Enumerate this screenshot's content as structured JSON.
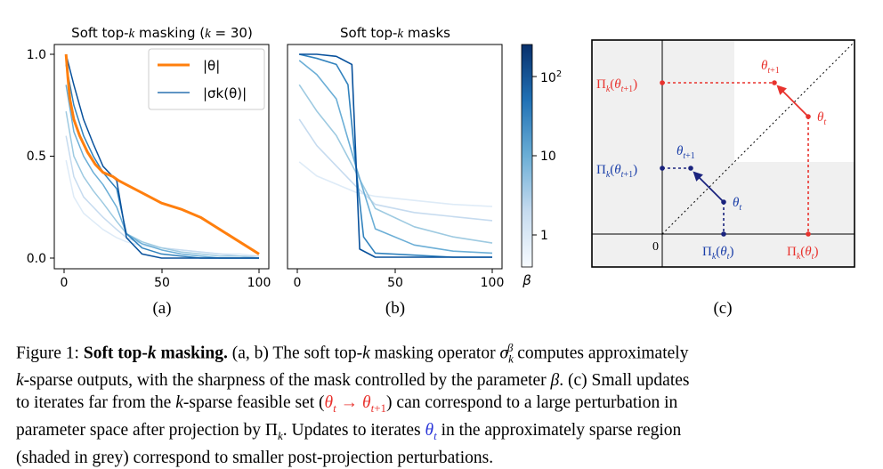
{
  "panels": {
    "a": {
      "title": "Soft top-k masking (k = 30)",
      "label": "(a)",
      "legend": [
        "|θ|",
        "|σk(θ)|"
      ],
      "xticks": [
        "0",
        "50",
        "100"
      ],
      "yticks": [
        "1.0",
        "0.5",
        "0.0"
      ]
    },
    "b": {
      "title": "Soft top-k masks",
      "label": "(b)",
      "xticks": [
        "0",
        "50",
        "100"
      ],
      "colorbar": {
        "label": "β",
        "ticks": [
          "10²",
          "10",
          "1"
        ]
      }
    },
    "c": {
      "label": "(c)",
      "zero": "0",
      "red": {
        "theta_t": "θt",
        "theta_t1": "θt+1",
        "proj_t": "Πk(θt)",
        "proj_t1": "Πk(θt+1)"
      },
      "blue": {
        "theta_t": "θt",
        "theta_t1": "θt+1",
        "proj_t": "Πk(θt)",
        "proj_t1": "Πk(θt+1)"
      }
    }
  },
  "chart_data": [
    {
      "type": "line",
      "title": "Soft top-k masking (k = 30)",
      "xlim": [
        0,
        100
      ],
      "ylim": [
        0,
        1
      ],
      "series": [
        {
          "name": "|θ|",
          "color": "#ff7f0e",
          "x": [
            1,
            2,
            3,
            5,
            8,
            12,
            16,
            20,
            25,
            28,
            32,
            40,
            50,
            60,
            70,
            80,
            90,
            95,
            100
          ],
          "y": [
            1.0,
            0.88,
            0.78,
            0.68,
            0.6,
            0.52,
            0.46,
            0.42,
            0.4,
            0.38,
            0.36,
            0.32,
            0.27,
            0.24,
            0.2,
            0.14,
            0.08,
            0.05,
            0.02
          ]
        }
      ],
      "mask_series": [
        {
          "beta": 1,
          "color": "#deebf7",
          "y": [
            0.48,
            0.3,
            0.22,
            0.18,
            0.14,
            0.1,
            0.08,
            0.06,
            0.05,
            0.04,
            0.03,
            0.02,
            0.02,
            0.01
          ]
        },
        {
          "beta": 3,
          "color": "#c6dbef",
          "y": [
            0.6,
            0.4,
            0.3,
            0.25,
            0.2,
            0.14,
            0.1,
            0.07,
            0.05,
            0.04,
            0.03,
            0.02,
            0.01,
            0.01
          ]
        },
        {
          "beta": 10,
          "color": "#9ecae1",
          "y": [
            0.72,
            0.5,
            0.4,
            0.33,
            0.27,
            0.18,
            0.12,
            0.08,
            0.05,
            0.03,
            0.02,
            0.01,
            0.01,
            0.0
          ]
        },
        {
          "beta": 30,
          "color": "#6baed6",
          "y": [
            0.85,
            0.62,
            0.5,
            0.42,
            0.36,
            0.25,
            0.12,
            0.07,
            0.04,
            0.02,
            0.01,
            0.0,
            0.0,
            0.0
          ]
        },
        {
          "beta": 100,
          "color": "#3182bd",
          "y": [
            0.95,
            0.75,
            0.6,
            0.5,
            0.42,
            0.34,
            0.12,
            0.05,
            0.02,
            0.01,
            0.0,
            0.0,
            0.0,
            0.0
          ]
        },
        {
          "beta": 300,
          "color": "#08519c",
          "y": [
            1.0,
            0.85,
            0.68,
            0.56,
            0.45,
            0.38,
            0.1,
            0.02,
            0.0,
            0.0,
            0.0,
            0.0,
            0.0,
            0.0
          ]
        }
      ],
      "mask_x": [
        1,
        5,
        10,
        15,
        20,
        27,
        32,
        40,
        50,
        60,
        70,
        80,
        90,
        100
      ]
    },
    {
      "type": "line",
      "title": "Soft top-k masks",
      "xlim": [
        0,
        100
      ],
      "ylim": [
        0,
        1
      ],
      "series": [
        {
          "beta": 1,
          "color": "#deebf7",
          "x": [
            1,
            10,
            20,
            30,
            40,
            60,
            80,
            100
          ],
          "y": [
            0.47,
            0.4,
            0.36,
            0.32,
            0.3,
            0.28,
            0.26,
            0.25
          ]
        },
        {
          "beta": 3,
          "color": "#c6dbef",
          "x": [
            1,
            10,
            20,
            30,
            40,
            60,
            80,
            100
          ],
          "y": [
            0.68,
            0.55,
            0.45,
            0.35,
            0.26,
            0.22,
            0.2,
            0.18
          ]
        },
        {
          "beta": 10,
          "color": "#9ecae1",
          "x": [
            1,
            10,
            20,
            30,
            40,
            60,
            80,
            100
          ],
          "y": [
            0.85,
            0.72,
            0.6,
            0.42,
            0.24,
            0.15,
            0.1,
            0.07
          ]
        },
        {
          "beta": 30,
          "color": "#6baed6",
          "x": [
            1,
            10,
            20,
            30,
            40,
            60,
            80,
            100
          ],
          "y": [
            0.97,
            0.9,
            0.78,
            0.45,
            0.14,
            0.06,
            0.03,
            0.02
          ]
        },
        {
          "beta": 100,
          "color": "#3182bd",
          "x": [
            1,
            10,
            20,
            26,
            30,
            34,
            40,
            60,
            80,
            100
          ],
          "y": [
            1.0,
            0.98,
            0.95,
            0.85,
            0.45,
            0.1,
            0.02,
            0.01,
            0.0,
            0.0
          ]
        },
        {
          "beta": 300,
          "color": "#08519c",
          "x": [
            1,
            10,
            20,
            28,
            30,
            32,
            40,
            60,
            80,
            100
          ],
          "y": [
            1.0,
            1.0,
            0.99,
            0.95,
            0.5,
            0.04,
            0.0,
            0.0,
            0.0,
            0.0
          ]
        }
      ]
    }
  ],
  "caption": {
    "prefix": "Figure 1:",
    "bold": "Soft top-k masking.",
    "line1": "(a, b) The soft top-k masking operator σkβ computes approximately",
    "line2": "k-sparse outputs, with the sharpness of the mask controlled by the parameter β. (c) Small updates",
    "line3a": "to iterates far from the k-sparse feasible set (",
    "line3red": "θt → θt+1",
    "line3b": ") can correspond to a large perturbation in",
    "line4a": "parameter space after projection by Πk. Updates to iterates ",
    "line4blue": "θt",
    "line4b": " in the approximately sparse region",
    "line5": "(shaded in grey) correspond to smaller post-projection perturbations."
  }
}
